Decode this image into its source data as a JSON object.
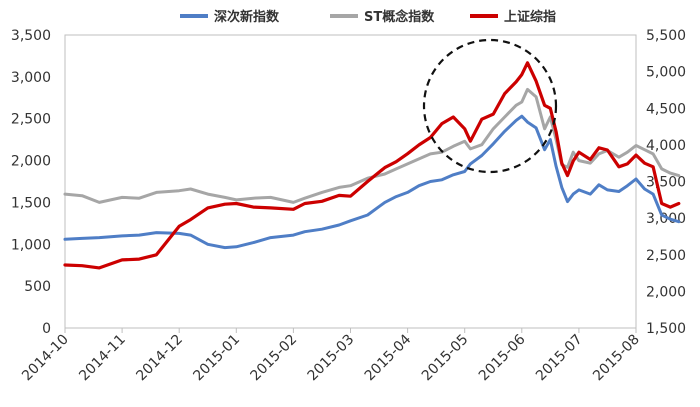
{
  "chart_data": {
    "type": "line",
    "title": "",
    "xlabel": "",
    "ylabel": "",
    "x_categories": [
      "2014-10",
      "2014-11",
      "2014-12",
      "2015-01",
      "2015-02",
      "2015-03",
      "2015-04",
      "2015-05",
      "2015-06",
      "2015-07",
      "2015-08"
    ],
    "y_left": {
      "range": [
        0,
        3500
      ],
      "ticks": [
        "0",
        "500",
        "1,000",
        "1,500",
        "2,000",
        "2,500",
        "3,000",
        "3,500"
      ]
    },
    "y_right": {
      "range": [
        1500,
        5500
      ],
      "ticks": [
        "1,500",
        "2,000",
        "2,500",
        "3,000",
        "3,500",
        "4,000",
        "4,500",
        "5,000",
        "5,500"
      ]
    },
    "legend_position": "top-center",
    "grid": false,
    "series": [
      {
        "name": "深次新指数",
        "axis": "left",
        "color": "#4f7ec6",
        "points": [
          [
            0,
            1060
          ],
          [
            0.3,
            1070
          ],
          [
            0.6,
            1080
          ],
          [
            1.0,
            1100
          ],
          [
            1.3,
            1110
          ],
          [
            1.6,
            1140
          ],
          [
            2.0,
            1130
          ],
          [
            2.2,
            1110
          ],
          [
            2.5,
            1000
          ],
          [
            2.8,
            960
          ],
          [
            3.0,
            970
          ],
          [
            3.3,
            1020
          ],
          [
            3.6,
            1080
          ],
          [
            4.0,
            1110
          ],
          [
            4.2,
            1150
          ],
          [
            4.5,
            1180
          ],
          [
            4.8,
            1230
          ],
          [
            5.0,
            1280
          ],
          [
            5.3,
            1350
          ],
          [
            5.6,
            1500
          ],
          [
            5.8,
            1570
          ],
          [
            6.0,
            1620
          ],
          [
            6.2,
            1700
          ],
          [
            6.4,
            1750
          ],
          [
            6.6,
            1770
          ],
          [
            6.8,
            1830
          ],
          [
            7.0,
            1870
          ],
          [
            7.1,
            1960
          ],
          [
            7.3,
            2060
          ],
          [
            7.5,
            2200
          ],
          [
            7.7,
            2350
          ],
          [
            7.9,
            2480
          ],
          [
            8.0,
            2530
          ],
          [
            8.1,
            2460
          ],
          [
            8.25,
            2390
          ],
          [
            8.4,
            2130
          ],
          [
            8.5,
            2250
          ],
          [
            8.6,
            1930
          ],
          [
            8.7,
            1680
          ],
          [
            8.8,
            1510
          ],
          [
            8.9,
            1600
          ],
          [
            9.0,
            1650
          ],
          [
            9.2,
            1600
          ],
          [
            9.35,
            1710
          ],
          [
            9.5,
            1650
          ],
          [
            9.7,
            1630
          ],
          [
            9.85,
            1700
          ],
          [
            10.0,
            1780
          ],
          [
            10.15,
            1660
          ],
          [
            10.3,
            1600
          ],
          [
            10.45,
            1350
          ],
          [
            10.6,
            1300
          ],
          [
            10.75,
            1270
          ]
        ]
      },
      {
        "name": "ST概念指数",
        "axis": "left",
        "color": "#a6a6a6",
        "points": [
          [
            0,
            1600
          ],
          [
            0.3,
            1580
          ],
          [
            0.6,
            1500
          ],
          [
            1.0,
            1560
          ],
          [
            1.3,
            1550
          ],
          [
            1.6,
            1620
          ],
          [
            2.0,
            1640
          ],
          [
            2.2,
            1660
          ],
          [
            2.5,
            1600
          ],
          [
            2.8,
            1560
          ],
          [
            3.0,
            1530
          ],
          [
            3.3,
            1550
          ],
          [
            3.6,
            1560
          ],
          [
            4.0,
            1500
          ],
          [
            4.2,
            1550
          ],
          [
            4.5,
            1620
          ],
          [
            4.8,
            1680
          ],
          [
            5.0,
            1700
          ],
          [
            5.3,
            1790
          ],
          [
            5.6,
            1840
          ],
          [
            5.8,
            1900
          ],
          [
            6.0,
            1960
          ],
          [
            6.2,
            2020
          ],
          [
            6.4,
            2080
          ],
          [
            6.6,
            2100
          ],
          [
            6.8,
            2170
          ],
          [
            7.0,
            2230
          ],
          [
            7.1,
            2140
          ],
          [
            7.3,
            2190
          ],
          [
            7.5,
            2380
          ],
          [
            7.7,
            2520
          ],
          [
            7.9,
            2660
          ],
          [
            8.0,
            2700
          ],
          [
            8.1,
            2850
          ],
          [
            8.25,
            2760
          ],
          [
            8.4,
            2380
          ],
          [
            8.5,
            2520
          ],
          [
            8.6,
            2250
          ],
          [
            8.7,
            1950
          ],
          [
            8.8,
            1920
          ],
          [
            8.9,
            2100
          ],
          [
            9.0,
            2000
          ],
          [
            9.2,
            1970
          ],
          [
            9.35,
            2080
          ],
          [
            9.5,
            2120
          ],
          [
            9.7,
            2040
          ],
          [
            9.85,
            2100
          ],
          [
            10.0,
            2180
          ],
          [
            10.15,
            2130
          ],
          [
            10.3,
            2080
          ],
          [
            10.45,
            1900
          ],
          [
            10.6,
            1850
          ],
          [
            10.75,
            1820
          ]
        ]
      },
      {
        "name": "上证综指",
        "axis": "right",
        "color": "#cc0000",
        "points": [
          [
            0,
            2360
          ],
          [
            0.3,
            2350
          ],
          [
            0.6,
            2320
          ],
          [
            1.0,
            2430
          ],
          [
            1.3,
            2440
          ],
          [
            1.6,
            2500
          ],
          [
            2.0,
            2890
          ],
          [
            2.2,
            2980
          ],
          [
            2.5,
            3140
          ],
          [
            2.8,
            3190
          ],
          [
            3.0,
            3200
          ],
          [
            3.3,
            3150
          ],
          [
            3.6,
            3140
          ],
          [
            4.0,
            3120
          ],
          [
            4.2,
            3200
          ],
          [
            4.5,
            3230
          ],
          [
            4.8,
            3310
          ],
          [
            5.0,
            3300
          ],
          [
            5.3,
            3500
          ],
          [
            5.6,
            3690
          ],
          [
            5.8,
            3770
          ],
          [
            6.0,
            3880
          ],
          [
            6.2,
            4000
          ],
          [
            6.4,
            4100
          ],
          [
            6.6,
            4290
          ],
          [
            6.8,
            4380
          ],
          [
            7.0,
            4220
          ],
          [
            7.1,
            4050
          ],
          [
            7.3,
            4350
          ],
          [
            7.5,
            4420
          ],
          [
            7.7,
            4700
          ],
          [
            7.9,
            4860
          ],
          [
            8.0,
            4960
          ],
          [
            8.1,
            5120
          ],
          [
            8.25,
            4870
          ],
          [
            8.4,
            4540
          ],
          [
            8.5,
            4500
          ],
          [
            8.6,
            4180
          ],
          [
            8.7,
            3750
          ],
          [
            8.8,
            3580
          ],
          [
            8.9,
            3780
          ],
          [
            9.0,
            3900
          ],
          [
            9.2,
            3800
          ],
          [
            9.35,
            3960
          ],
          [
            9.5,
            3930
          ],
          [
            9.7,
            3700
          ],
          [
            9.85,
            3740
          ],
          [
            10.0,
            3860
          ],
          [
            10.15,
            3750
          ],
          [
            10.3,
            3700
          ],
          [
            10.45,
            3200
          ],
          [
            10.6,
            3150
          ],
          [
            10.75,
            3200
          ]
        ]
      }
    ]
  }
}
